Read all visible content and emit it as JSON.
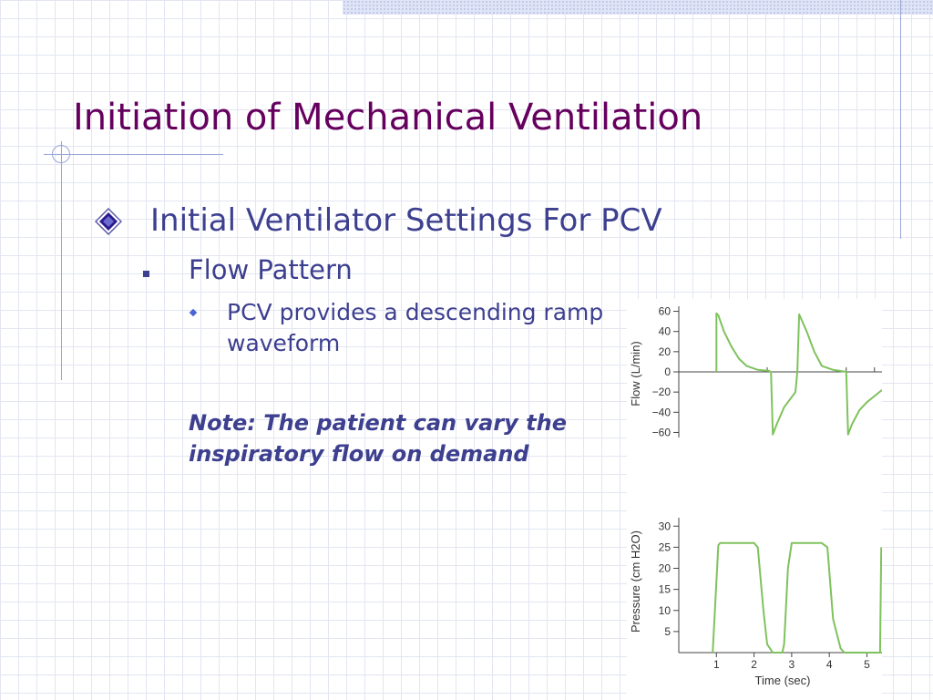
{
  "slide": {
    "title": "Initiation of Mechanical Ventilation",
    "level1": "Initial Ventilator Settings For PCV",
    "level2": "Flow Pattern",
    "level3": "PCV provides a descending ramp waveform",
    "note": "Note: The patient can vary the inspiratory flow on demand"
  },
  "colors": {
    "title": "#66005e",
    "body": "#3d3f8f",
    "waveform": "#7fc25d"
  },
  "chart_data": [
    {
      "type": "line",
      "ylabel": "Flow (L/min)",
      "yticks": [
        60,
        40,
        20,
        0,
        -20,
        -40,
        -60
      ],
      "ytick_labels": [
        "60",
        "40",
        "20",
        "0",
        "−20",
        "−40",
        "−60"
      ],
      "ylim": [
        -65,
        65
      ],
      "xlim": [
        0,
        5.4
      ],
      "series": [
        {
          "x": [
            1,
            1,
            1.05,
            1.2,
            1.4,
            1.6,
            1.8,
            2.1,
            2.4,
            2.45,
            2.5,
            2.6,
            2.8,
            3.0,
            3.1,
            3.15,
            3.2,
            3.4,
            3.6,
            3.8,
            4.1,
            4.45,
            4.5,
            4.6,
            4.8,
            5.0,
            5.2,
            5.4
          ],
          "y": [
            0,
            58,
            56,
            40,
            25,
            13,
            6,
            2,
            1,
            0,
            -62,
            -52,
            -35,
            -25,
            -20,
            0,
            57,
            40,
            20,
            6,
            2,
            0,
            -62,
            -52,
            -38,
            -30,
            -24,
            -18
          ]
        }
      ]
    },
    {
      "type": "line",
      "xlabel": "Time (sec)",
      "ylabel": "Pressure (cm H2O)",
      "xticks": [
        1,
        2,
        3,
        4,
        5
      ],
      "yticks": [
        5,
        10,
        15,
        20,
        25,
        30
      ],
      "ylim": [
        0,
        32
      ],
      "xlim": [
        0,
        5.4
      ],
      "series": [
        {
          "x": [
            0.9,
            1.05,
            1.1,
            1.2,
            2.0,
            2.1,
            2.25,
            2.35,
            2.5,
            2.65,
            2.75,
            2.8,
            2.9,
            3.0,
            3.8,
            3.95,
            4.1,
            4.3,
            4.4,
            4.6,
            5.35,
            5.38
          ],
          "y": [
            0,
            25.5,
            26,
            26,
            26,
            25,
            10,
            2,
            0,
            0,
            0,
            2,
            20,
            26,
            26,
            25,
            8,
            1,
            0,
            0,
            0,
            25
          ]
        }
      ]
    }
  ]
}
